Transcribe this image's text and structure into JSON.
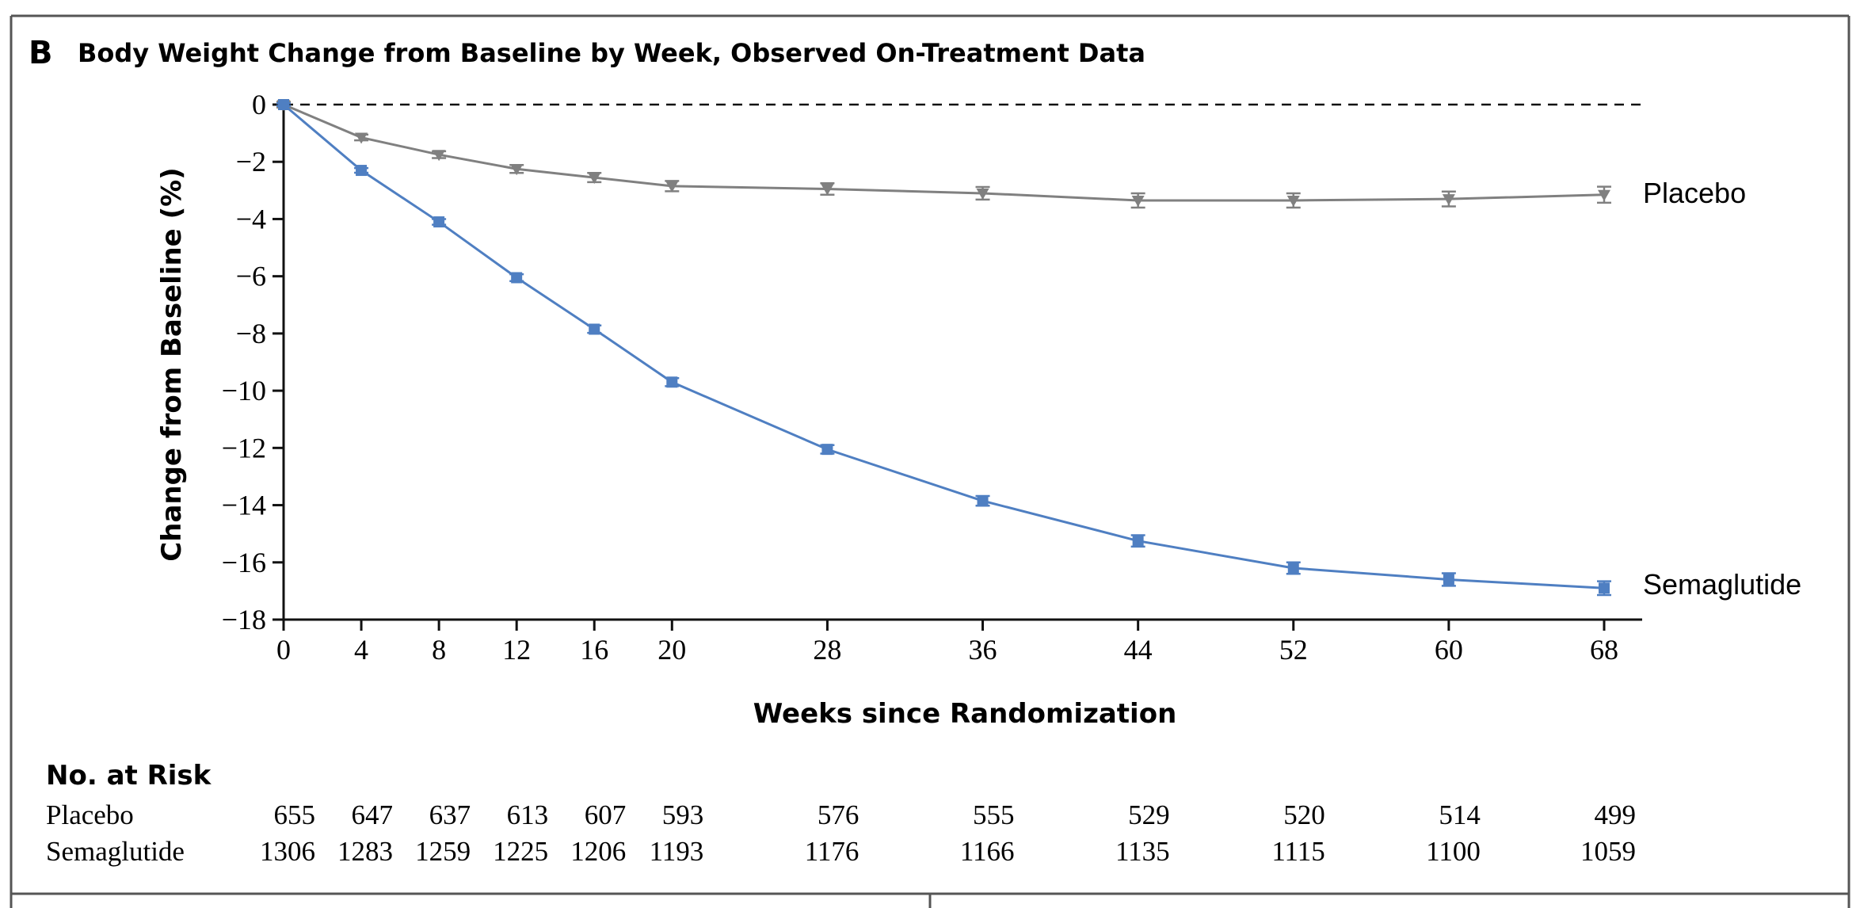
{
  "panel_letter": "B",
  "colors": {
    "semaglutide": "#4f7fc2",
    "placebo": "#808080",
    "axis": "#111111",
    "frame": "#555555"
  },
  "chart_data": {
    "type": "line",
    "title": "Body Weight Change from Baseline by Week, Observed On-Treatment Data",
    "xlabel": "Weeks since Randomization",
    "ylabel": "Change from Baseline (%)",
    "xlim": [
      0,
      68
    ],
    "ylim": [
      -18,
      0
    ],
    "x_ticks": [
      0,
      4,
      8,
      12,
      16,
      20,
      28,
      36,
      44,
      52,
      60,
      68
    ],
    "y_ticks": [
      0,
      -2,
      -4,
      -6,
      -8,
      -10,
      -12,
      -14,
      -16,
      -18
    ],
    "reference_line_y": 0,
    "grid": false,
    "legend": "direct labels at right end of lines",
    "series": [
      {
        "name": "Placebo",
        "marker": "triangle-down",
        "color": "#808080",
        "x": [
          0,
          4,
          8,
          12,
          16,
          20,
          28,
          36,
          44,
          52,
          60,
          68
        ],
        "y": [
          0,
          -1.15,
          -1.75,
          -2.25,
          -2.55,
          -2.85,
          -2.95,
          -3.1,
          -3.35,
          -3.35,
          -3.3,
          -3.15
        ],
        "error": [
          0.1,
          0.1,
          0.12,
          0.14,
          0.16,
          0.18,
          0.2,
          0.22,
          0.25,
          0.25,
          0.26,
          0.28
        ]
      },
      {
        "name": "Semaglutide",
        "marker": "square",
        "color": "#4f7fc2",
        "x": [
          0,
          4,
          8,
          12,
          16,
          20,
          28,
          36,
          44,
          52,
          60,
          68
        ],
        "y": [
          0,
          -2.3,
          -4.1,
          -6.05,
          -7.85,
          -9.7,
          -12.05,
          -13.85,
          -15.25,
          -16.2,
          -16.6,
          -16.9
        ],
        "error": [
          0.05,
          0.08,
          0.1,
          0.12,
          0.13,
          0.14,
          0.15,
          0.17,
          0.2,
          0.2,
          0.22,
          0.24
        ]
      }
    ]
  },
  "risk_table": {
    "title": "No. at Risk",
    "rows": [
      {
        "label": "Placebo",
        "values": [
          "655",
          "647",
          "637",
          "613",
          "607",
          "593",
          "576",
          "555",
          "529",
          "520",
          "514",
          "499"
        ]
      },
      {
        "label": "Semaglutide",
        "values": [
          "1306",
          "1283",
          "1259",
          "1225",
          "1206",
          "1193",
          "1176",
          "1166",
          "1135",
          "1115",
          "1100",
          "1059"
        ]
      }
    ]
  }
}
